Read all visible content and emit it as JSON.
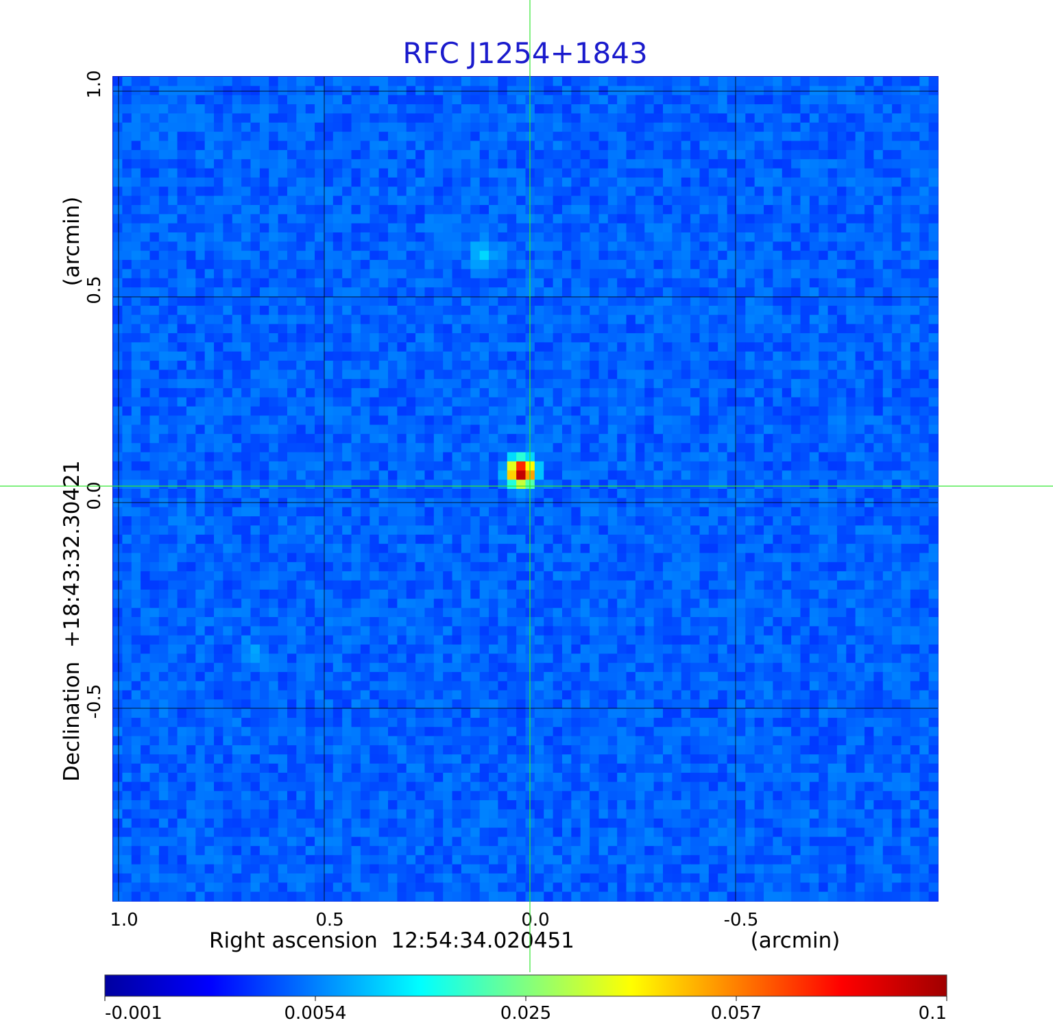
{
  "chart_data": {
    "type": "heatmap",
    "title": "RFC J1254+1843",
    "xlabel": "Right ascension  12:54:34.020451",
    "xunit": "(arcmin)",
    "ylabel": "Declination  +18:43:32.30421",
    "yunit": "(arcmin)",
    "xlim": [
      1.0,
      -1.0
    ],
    "ylim": [
      -1.0,
      1.0
    ],
    "x_ticks": [
      "1.0",
      "0.5",
      "0.0",
      "-0.5"
    ],
    "y_ticks": [
      "1.0",
      "0.5",
      "0.0",
      "-0.5"
    ],
    "grid": true,
    "crosshair": {
      "x": 0.0,
      "y": 0.04,
      "color": "#33e633"
    },
    "source": {
      "x": 0.01,
      "y": 0.04,
      "peak": 0.1
    },
    "secondary_blobs": [
      {
        "x": 0.1,
        "y": 0.57,
        "value": 0.006
      },
      {
        "x": 0.66,
        "y": -0.4,
        "value": 0.004
      }
    ],
    "background_value": 0.0015,
    "colorbar": {
      "ticks": [
        "-0.001",
        "0.0054",
        "0.025",
        "0.057",
        "0.1"
      ],
      "colormap": [
        "#0000a0",
        "#0000ff",
        "#0080ff",
        "#00ffff",
        "#80ff80",
        "#ffff00",
        "#ff8000",
        "#ff0000",
        "#a00000"
      ]
    }
  }
}
